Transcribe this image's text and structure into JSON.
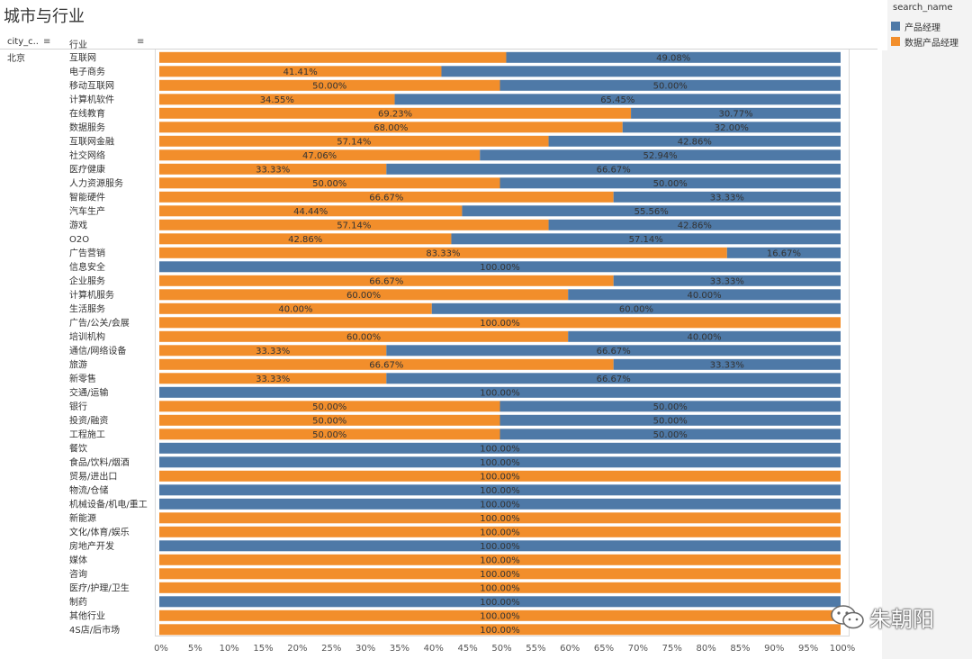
{
  "title": "城市与行业",
  "headers": {
    "city": "city_c..",
    "industry": "行业"
  },
  "city": "北京",
  "legend": {
    "title": "search_name",
    "items": [
      {
        "label": "产品经理",
        "color": "#4e79a7"
      },
      {
        "label": "数据产品经理",
        "color": "#f28e2b"
      }
    ]
  },
  "watermark": "朱朝阳",
  "chart_data": {
    "type": "bar",
    "orientation": "horizontal",
    "stacked": "100%",
    "xlim": [
      0,
      100
    ],
    "x_ticks": [
      "0%",
      "5%",
      "10%",
      "15%",
      "20%",
      "25%",
      "30%",
      "35%",
      "40%",
      "45%",
      "50%",
      "55%",
      "60%",
      "65%",
      "70%",
      "75%",
      "80%",
      "85%",
      "90%",
      "95%",
      "100%"
    ],
    "categories": [
      "互联网",
      "电子商务",
      "移动互联网",
      "计算机软件",
      "在线教育",
      "数据服务",
      "互联网金融",
      "社交网络",
      "医疗健康",
      "人力资源服务",
      "智能硬件",
      "汽车生产",
      "游戏",
      "O2O",
      "广告营销",
      "信息安全",
      "企业服务",
      "计算机服务",
      "生活服务",
      "广告/公关/会展",
      "培训机构",
      "通信/网络设备",
      "旅游",
      "新零售",
      "交通/运输",
      "银行",
      "投资/融资",
      "工程施工",
      "餐饮",
      "食品/饮料/烟酒",
      "贸易/进出口",
      "物流/仓储",
      "机械设备/机电/重工",
      "新能源",
      "文化/体育/娱乐",
      "房地产开发",
      "媒体",
      "咨询",
      "医疗/护理/卫生",
      "制药",
      "其他行业",
      "4S店/后市场"
    ],
    "series": [
      {
        "name": "数据产品经理",
        "color": "#f28e2b",
        "values": [
          50.92,
          41.41,
          50.0,
          34.55,
          69.23,
          68.0,
          57.14,
          47.06,
          33.33,
          50.0,
          66.67,
          44.44,
          57.14,
          42.86,
          83.33,
          0,
          66.67,
          60.0,
          40.0,
          100.0,
          60.0,
          33.33,
          66.67,
          33.33,
          0,
          50.0,
          50.0,
          50.0,
          0,
          0,
          100.0,
          0,
          0,
          100.0,
          100.0,
          0,
          100.0,
          100.0,
          100.0,
          0,
          100.0,
          100.0
        ],
        "labels": [
          "",
          "41.41%",
          "50.00%",
          "34.55%",
          "69.23%",
          "68.00%",
          "57.14%",
          "47.06%",
          "33.33%",
          "50.00%",
          "66.67%",
          "44.44%",
          "57.14%",
          "42.86%",
          "83.33%",
          "",
          "66.67%",
          "60.00%",
          "40.00%",
          "100.00%",
          "60.00%",
          "33.33%",
          "66.67%",
          "33.33%",
          "",
          "50.00%",
          "50.00%",
          "50.00%",
          "",
          "",
          "100.00%",
          "",
          "",
          "100.00%",
          "100.00%",
          "",
          "100.00%",
          "100.00%",
          "100.00%",
          "",
          "100.00%",
          "100.00%"
        ]
      },
      {
        "name": "产品经理",
        "color": "#4e79a7",
        "values": [
          49.08,
          58.59,
          50.0,
          65.45,
          30.77,
          32.0,
          42.86,
          52.94,
          66.67,
          50.0,
          33.33,
          55.56,
          42.86,
          57.14,
          16.67,
          100.0,
          33.33,
          40.0,
          60.0,
          0,
          40.0,
          66.67,
          33.33,
          66.67,
          100.0,
          50.0,
          50.0,
          50.0,
          100.0,
          100.0,
          0,
          100.0,
          100.0,
          0,
          0,
          100.0,
          0,
          0,
          0,
          100.0,
          0,
          0
        ],
        "labels": [
          "49.08%",
          "",
          "50.00%",
          "65.45%",
          "30.77%",
          "32.00%",
          "42.86%",
          "52.94%",
          "66.67%",
          "50.00%",
          "33.33%",
          "55.56%",
          "42.86%",
          "57.14%",
          "16.67%",
          "100.00%",
          "33.33%",
          "40.00%",
          "60.00%",
          "",
          "40.00%",
          "66.67%",
          "33.33%",
          "66.67%",
          "100.00%",
          "50.00%",
          "50.00%",
          "50.00%",
          "100.00%",
          "100.00%",
          "",
          "100.00%",
          "100.00%",
          "",
          "",
          "100.00%",
          "",
          "",
          "",
          "100.00%",
          "",
          ""
        ]
      }
    ]
  }
}
